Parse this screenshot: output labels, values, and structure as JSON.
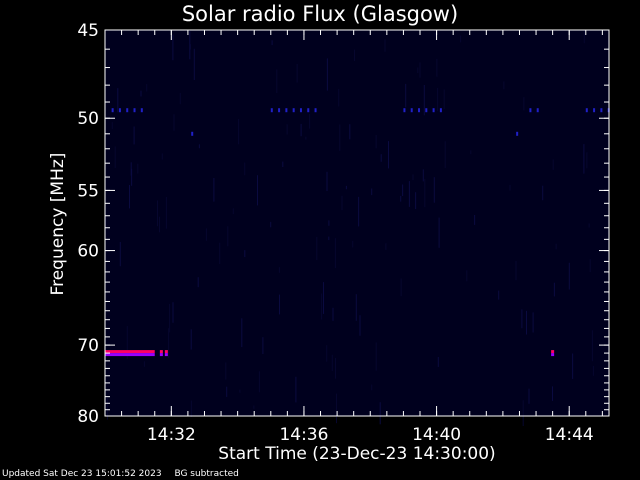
{
  "chart_data": {
    "type": "heatmap",
    "title": "Solar radio Flux (Glasgow)",
    "xlabel": "Start Time (23-Dec-23 14:30:00)",
    "ylabel": "Frequency [MHz]",
    "x_unit": "minutes after 14:30",
    "xlim": [
      0,
      15.2
    ],
    "ylim": [
      45,
      80
    ],
    "y_scale": "reciprocal",
    "x_ticks": [
      {
        "value": 2,
        "label": "14:32"
      },
      {
        "value": 6,
        "label": "14:36"
      },
      {
        "value": 10,
        "label": "14:40"
      },
      {
        "value": 14,
        "label": "14:44"
      }
    ],
    "y_ticks": [
      {
        "value": 45,
        "label": "45"
      },
      {
        "value": 50,
        "label": "50"
      },
      {
        "value": 55,
        "label": "55"
      },
      {
        "value": 60,
        "label": "60"
      },
      {
        "value": 70,
        "label": "70"
      },
      {
        "value": 80,
        "label": "80"
      }
    ],
    "background_color": "#00001e",
    "features": [
      {
        "kind": "bright-band",
        "freq_mhz": 71,
        "t_start": 0,
        "t_end": 1.5,
        "colors": [
          "#ff0064",
          "#9a00ff"
        ]
      },
      {
        "kind": "bright-dots",
        "freq_mhz": 71,
        "times": [
          1.7,
          1.85
        ]
      },
      {
        "kind": "bright-dot",
        "freq_mhz": 71,
        "times": [
          13.5
        ]
      },
      {
        "kind": "faint-dashes",
        "freq_mhz": 49.5,
        "segments": [
          [
            0.2,
            1.2
          ],
          [
            5.0,
            6.5
          ],
          [
            9.0,
            10.3
          ],
          [
            12.8,
            13.1
          ],
          [
            14.5,
            15.2
          ]
        ]
      },
      {
        "kind": "faint-dashes",
        "freq_mhz": 51,
        "segments": [
          [
            2.6,
            2.8
          ],
          [
            12.4,
            12.6
          ]
        ]
      }
    ]
  },
  "footer": {
    "updated": "Updated Sat Dec 23 15:01:52 2023",
    "note": "BG subtracted"
  }
}
